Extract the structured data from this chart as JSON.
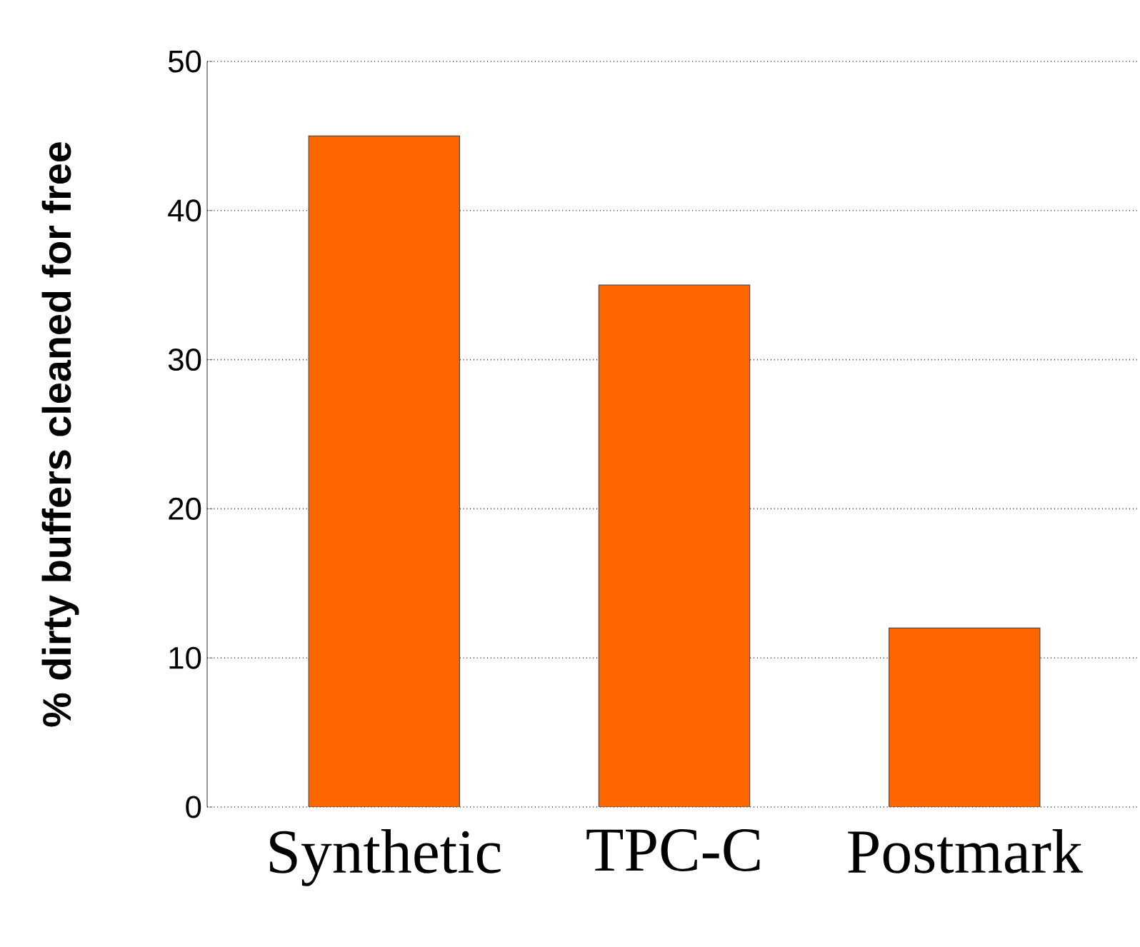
{
  "chart_data": {
    "type": "bar",
    "ylabel": "% dirty buffers cleaned for free",
    "categories": [
      "Synthetic",
      "TPC-C",
      "Postmark"
    ],
    "values": [
      45,
      35,
      12
    ],
    "color": "#ff6600",
    "ylim": [
      0,
      50
    ],
    "yticks": [
      0,
      10,
      20,
      30,
      40,
      50
    ],
    "grid": "y"
  }
}
